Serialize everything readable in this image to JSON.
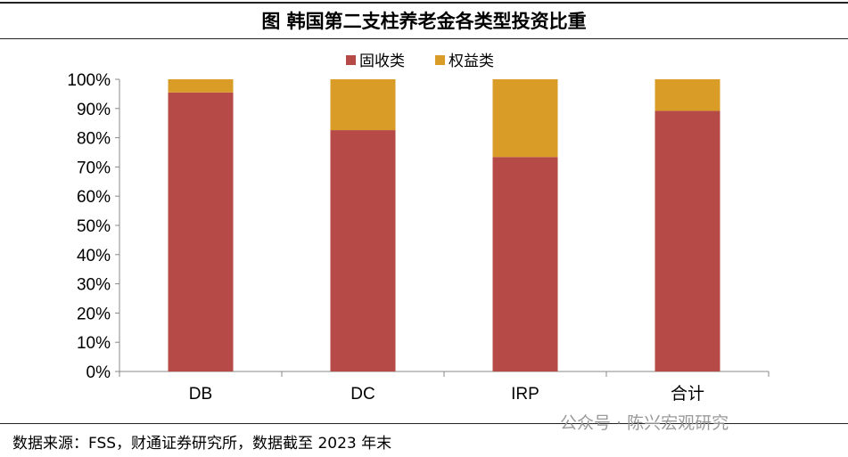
{
  "chart_data": {
    "type": "bar",
    "stacked": true,
    "title": "图  韩国第二支柱养老金各类型投资比重",
    "categories": [
      "DB",
      "DC",
      "IRP",
      "合计"
    ],
    "series": [
      {
        "name": "固收类",
        "color": "#B54A47",
        "values": [
          95.5,
          82.6,
          73.4,
          89.2
        ]
      },
      {
        "name": "权益类",
        "color": "#D99C27",
        "values": [
          4.5,
          17.4,
          26.6,
          10.8
        ]
      }
    ],
    "ylim": [
      0,
      100
    ],
    "yticks": [
      "0%",
      "10%",
      "20%",
      "30%",
      "40%",
      "50%",
      "60%",
      "70%",
      "80%",
      "90%",
      "100%"
    ],
    "grid": false,
    "legend": "top"
  },
  "footer": {
    "source": "数据来源：FSS，财通证券研究所，数据截至 2023 年末",
    "watermark": "公众号 · 陈兴宏观研究"
  }
}
